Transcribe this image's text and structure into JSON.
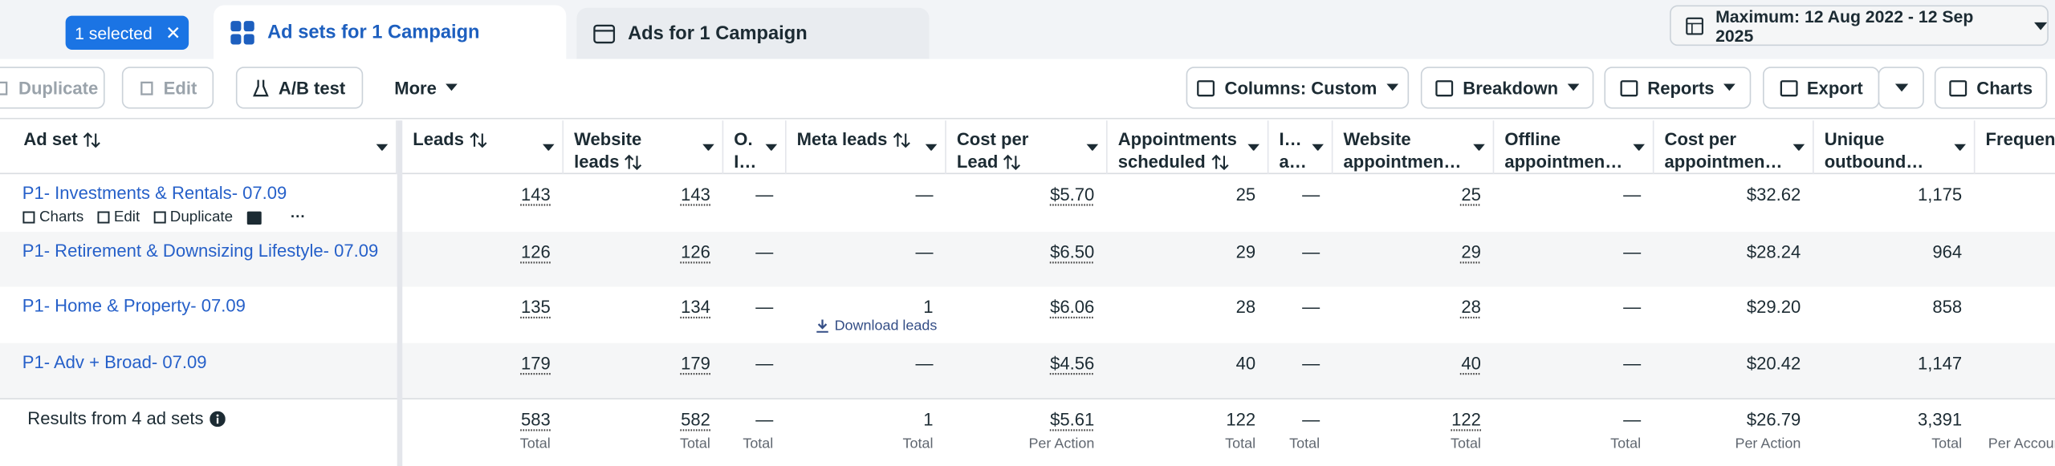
{
  "tabs": {
    "selected_chip": "1 selected",
    "items": [
      "Ad sets for 1 Campaign",
      "Ads for 1 Campaign"
    ]
  },
  "date_range": "Maximum: 12 Aug 2022 - 12 Sep 2025",
  "toolbar": {
    "left": [
      "Duplicate",
      "Edit",
      "A/B test",
      "More"
    ],
    "right": [
      "Columns: Custom",
      "Breakdown",
      "Reports",
      "Export",
      "Charts"
    ]
  },
  "table": {
    "columns": [
      "Ad set",
      "Leads",
      "Website leads",
      "O. I…",
      "Meta leads",
      "Cost per Lead",
      "Appointments scheduled",
      "I… a…",
      "Website appointmen…",
      "Offline appointmen…",
      "Cost per appointmen…",
      "Unique outbound…",
      "Frequency"
    ],
    "rows": [
      {
        "name": "P1- Investments & Rentals- 07.09",
        "actions": [
          "Charts",
          "Edit",
          "Duplicate"
        ],
        "cells": [
          "143",
          "143",
          "—",
          "—",
          "$5.70",
          "25",
          "—",
          "25",
          "—",
          "$32.62",
          "1,175"
        ]
      },
      {
        "name": "P1- Retirement & Downsizing Lifestyle- 07.09",
        "cells": [
          "126",
          "126",
          "—",
          "—",
          "$6.50",
          "29",
          "—",
          "29",
          "—",
          "$28.24",
          "964"
        ]
      },
      {
        "name": "P1- Home & Property- 07.09",
        "meta_leads_action": "Download leads",
        "cells": [
          "135",
          "134",
          "—",
          "1",
          "$6.06",
          "28",
          "—",
          "28",
          "—",
          "$29.20",
          "858"
        ]
      },
      {
        "name": "P1- Adv + Broad- 07.09",
        "cells": [
          "179",
          "179",
          "—",
          "—",
          "$4.56",
          "40",
          "—",
          "40",
          "—",
          "$20.42",
          "1,147"
        ]
      }
    ],
    "footer": {
      "label": "Results from 4 ad sets",
      "cells": [
        {
          "value": "583",
          "note": "Total"
        },
        {
          "value": "582",
          "note": "Total"
        },
        {
          "value": "—",
          "note": "Total"
        },
        {
          "value": "1",
          "note": "Total"
        },
        {
          "value": "$5.61",
          "note": "Per Action"
        },
        {
          "value": "122",
          "note": "Total"
        },
        {
          "value": "—",
          "note": "Total"
        },
        {
          "value": "122",
          "note": "Total"
        },
        {
          "value": "—",
          "note": "Total"
        },
        {
          "value": "$26.79",
          "note": "Per Action"
        },
        {
          "value": "3,391",
          "note": "Total"
        },
        {
          "value": "",
          "note": "Per Account"
        }
      ]
    }
  }
}
